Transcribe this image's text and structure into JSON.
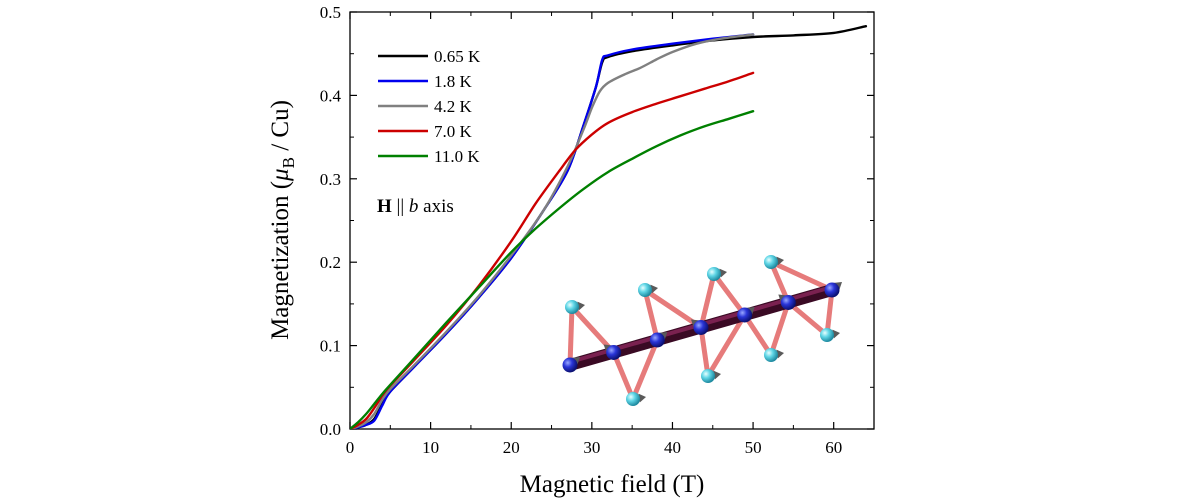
{
  "chart_data": {
    "type": "line",
    "xlabel": "Magnetic field (T)",
    "ylabel": "Magnetization (μB / Cu)",
    "ylabel_parts": {
      "pre": "Magnetization (",
      "mu": "μ",
      "sub": "B",
      "post": " / Cu)"
    },
    "xlim": [
      0,
      65
    ],
    "ylim": [
      0,
      0.5
    ],
    "xticks": [
      0,
      10,
      20,
      30,
      40,
      50,
      60
    ],
    "xtick_labels": [
      "0",
      "10",
      "20",
      "30",
      "40",
      "50",
      "60"
    ],
    "yticks": [
      0.0,
      0.1,
      0.2,
      0.3,
      0.4,
      0.5
    ],
    "ytick_labels": [
      "0.0",
      "0.1",
      "0.2",
      "0.3",
      "0.4",
      "0.5"
    ],
    "legend_position": "top-left",
    "annotation": {
      "bold": "H",
      "sep": " || ",
      "italic": "b",
      "rest": " axis"
    },
    "inset": "crystal-structure illustration (spin chain)",
    "series": [
      {
        "name": "0.65 K",
        "color": "#000000",
        "x": [
          0,
          1,
          2,
          3,
          4,
          5,
          8,
          12,
          16,
          20,
          24,
          27,
          29,
          30.5,
          31.3,
          32,
          35,
          40,
          45,
          50,
          55,
          60,
          64
        ],
        "y": [
          0,
          0.002,
          0.005,
          0.012,
          0.03,
          0.045,
          0.075,
          0.115,
          0.158,
          0.205,
          0.262,
          0.31,
          0.365,
          0.41,
          0.44,
          0.446,
          0.453,
          0.46,
          0.466,
          0.47,
          0.472,
          0.475,
          0.483
        ]
      },
      {
        "name": "1.8 K",
        "color": "#0000ee",
        "x": [
          0,
          1,
          2,
          3,
          4,
          5,
          8,
          12,
          16,
          20,
          24,
          27,
          29,
          30.5,
          31.3,
          32,
          35,
          40,
          45,
          50
        ],
        "y": [
          0,
          0.002,
          0.005,
          0.01,
          0.028,
          0.045,
          0.075,
          0.115,
          0.158,
          0.205,
          0.262,
          0.31,
          0.365,
          0.41,
          0.443,
          0.448,
          0.455,
          0.462,
          0.468,
          0.473
        ]
      },
      {
        "name": "4.2 K",
        "color": "#808080",
        "x": [
          0,
          1,
          2,
          3,
          4,
          5,
          8,
          12,
          16,
          20,
          24,
          27,
          29,
          30,
          31,
          32,
          34,
          36,
          38,
          40,
          43,
          46,
          50
        ],
        "y": [
          0,
          0.003,
          0.008,
          0.018,
          0.035,
          0.048,
          0.077,
          0.117,
          0.16,
          0.208,
          0.262,
          0.315,
          0.36,
          0.385,
          0.405,
          0.415,
          0.425,
          0.433,
          0.443,
          0.452,
          0.462,
          0.468,
          0.473
        ]
      },
      {
        "name": "7.0 K",
        "color": "#cc0000",
        "x": [
          0,
          1,
          2,
          3,
          4,
          5,
          8,
          12,
          16,
          20,
          23,
          26,
          28,
          30,
          32,
          35,
          38,
          41,
          44,
          47,
          50
        ],
        "y": [
          0,
          0.005,
          0.012,
          0.025,
          0.04,
          0.052,
          0.083,
          0.125,
          0.172,
          0.225,
          0.27,
          0.31,
          0.335,
          0.353,
          0.367,
          0.38,
          0.39,
          0.399,
          0.408,
          0.417,
          0.427
        ]
      },
      {
        "name": "11.0 K",
        "color": "#008000",
        "x": [
          0,
          1,
          2,
          3,
          4,
          5,
          8,
          12,
          16,
          20,
          23,
          26,
          29,
          32,
          35,
          38,
          41,
          44,
          47,
          50
        ],
        "y": [
          0,
          0.008,
          0.018,
          0.03,
          0.042,
          0.053,
          0.085,
          0.128,
          0.17,
          0.212,
          0.24,
          0.265,
          0.288,
          0.308,
          0.324,
          0.339,
          0.352,
          0.363,
          0.372,
          0.381
        ]
      }
    ]
  }
}
